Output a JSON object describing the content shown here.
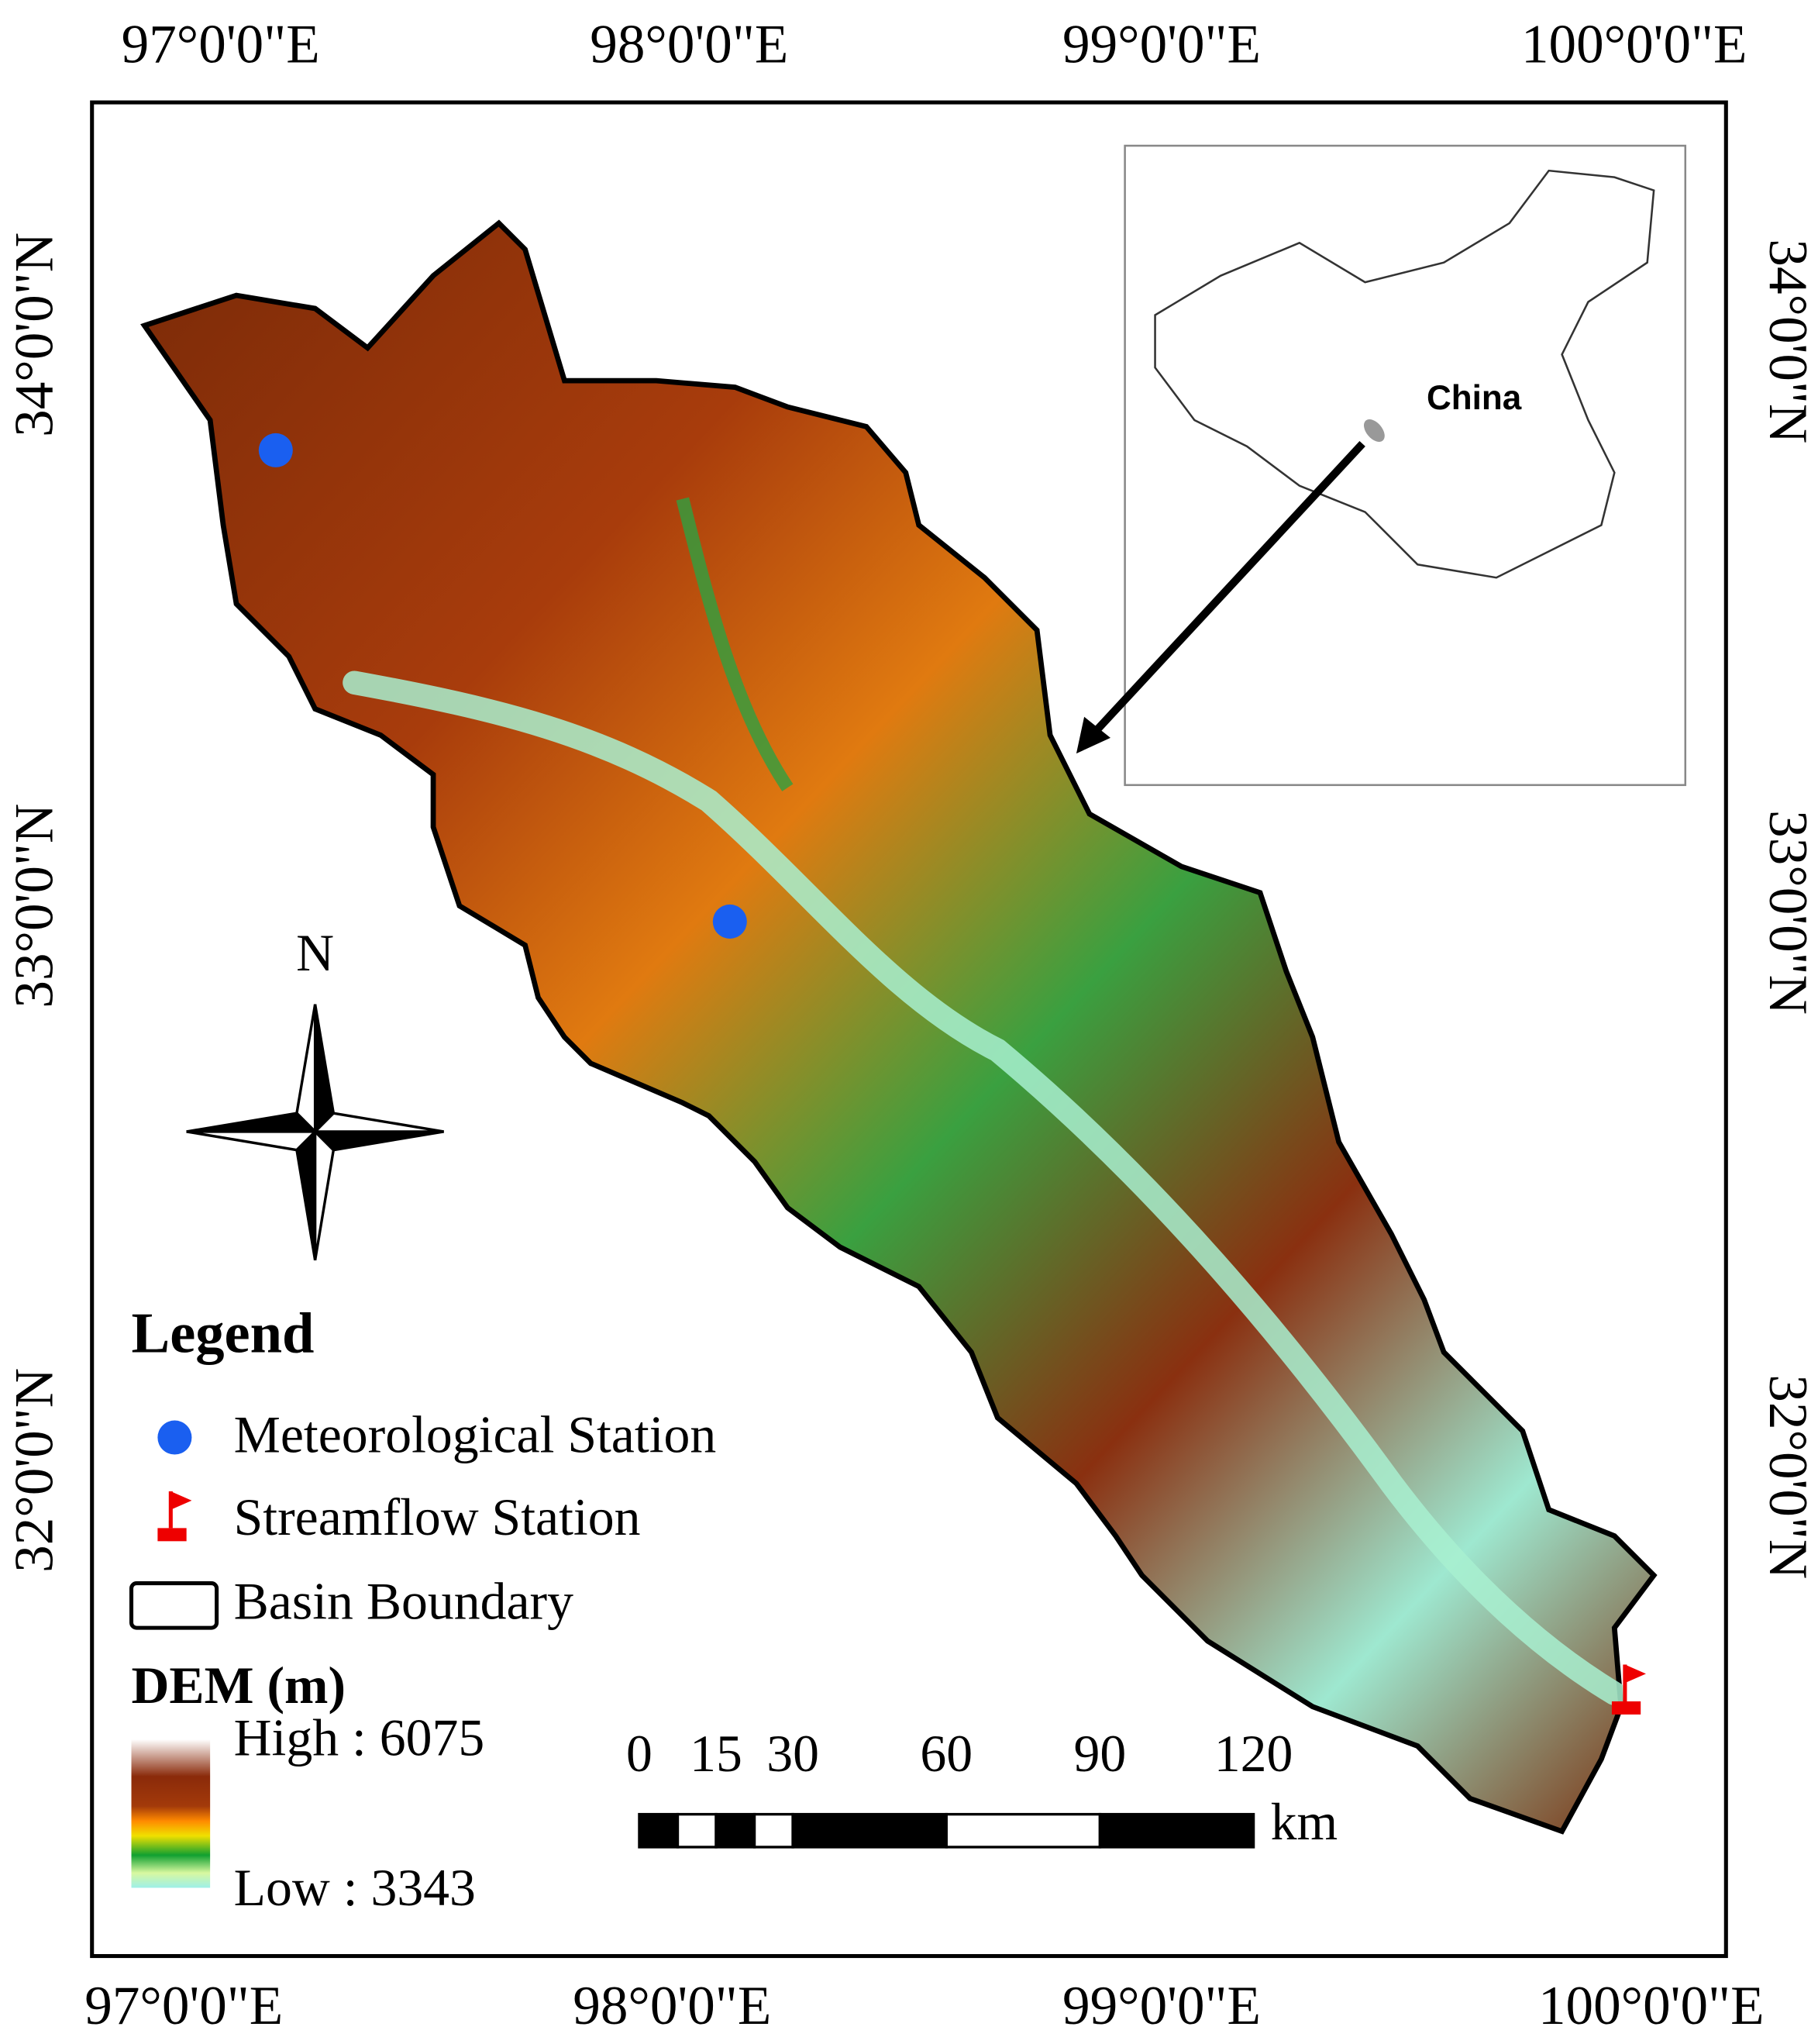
{
  "axes": {
    "top": [
      "97°0'0\"E",
      "98°0'0\"E",
      "99°0'0\"E",
      "100°0'0\"E"
    ],
    "bottom": [
      "97°0'0\"E",
      "98°0'0\"E",
      "99°0'0\"E",
      "100°0'0\"E"
    ],
    "left": [
      "34°0'0\"N",
      "33°0'0\"N",
      "32°0'0\"N"
    ],
    "right": [
      "34°0'0\"N",
      "33°0'0\"N",
      "32°0'0\"N"
    ]
  },
  "inset": {
    "label": "China"
  },
  "north_arrow": {
    "label": "N"
  },
  "legend": {
    "title": "Legend",
    "items": [
      "Meteorological Station",
      "Streamflow Station",
      "Basin Boundary"
    ]
  },
  "dem": {
    "title": "DEM (m)",
    "high": "High : 6075",
    "low": "Low : 3343"
  },
  "scale_bar": {
    "ticks": [
      0,
      15,
      30,
      60,
      90,
      120
    ],
    "unit": "km"
  }
}
